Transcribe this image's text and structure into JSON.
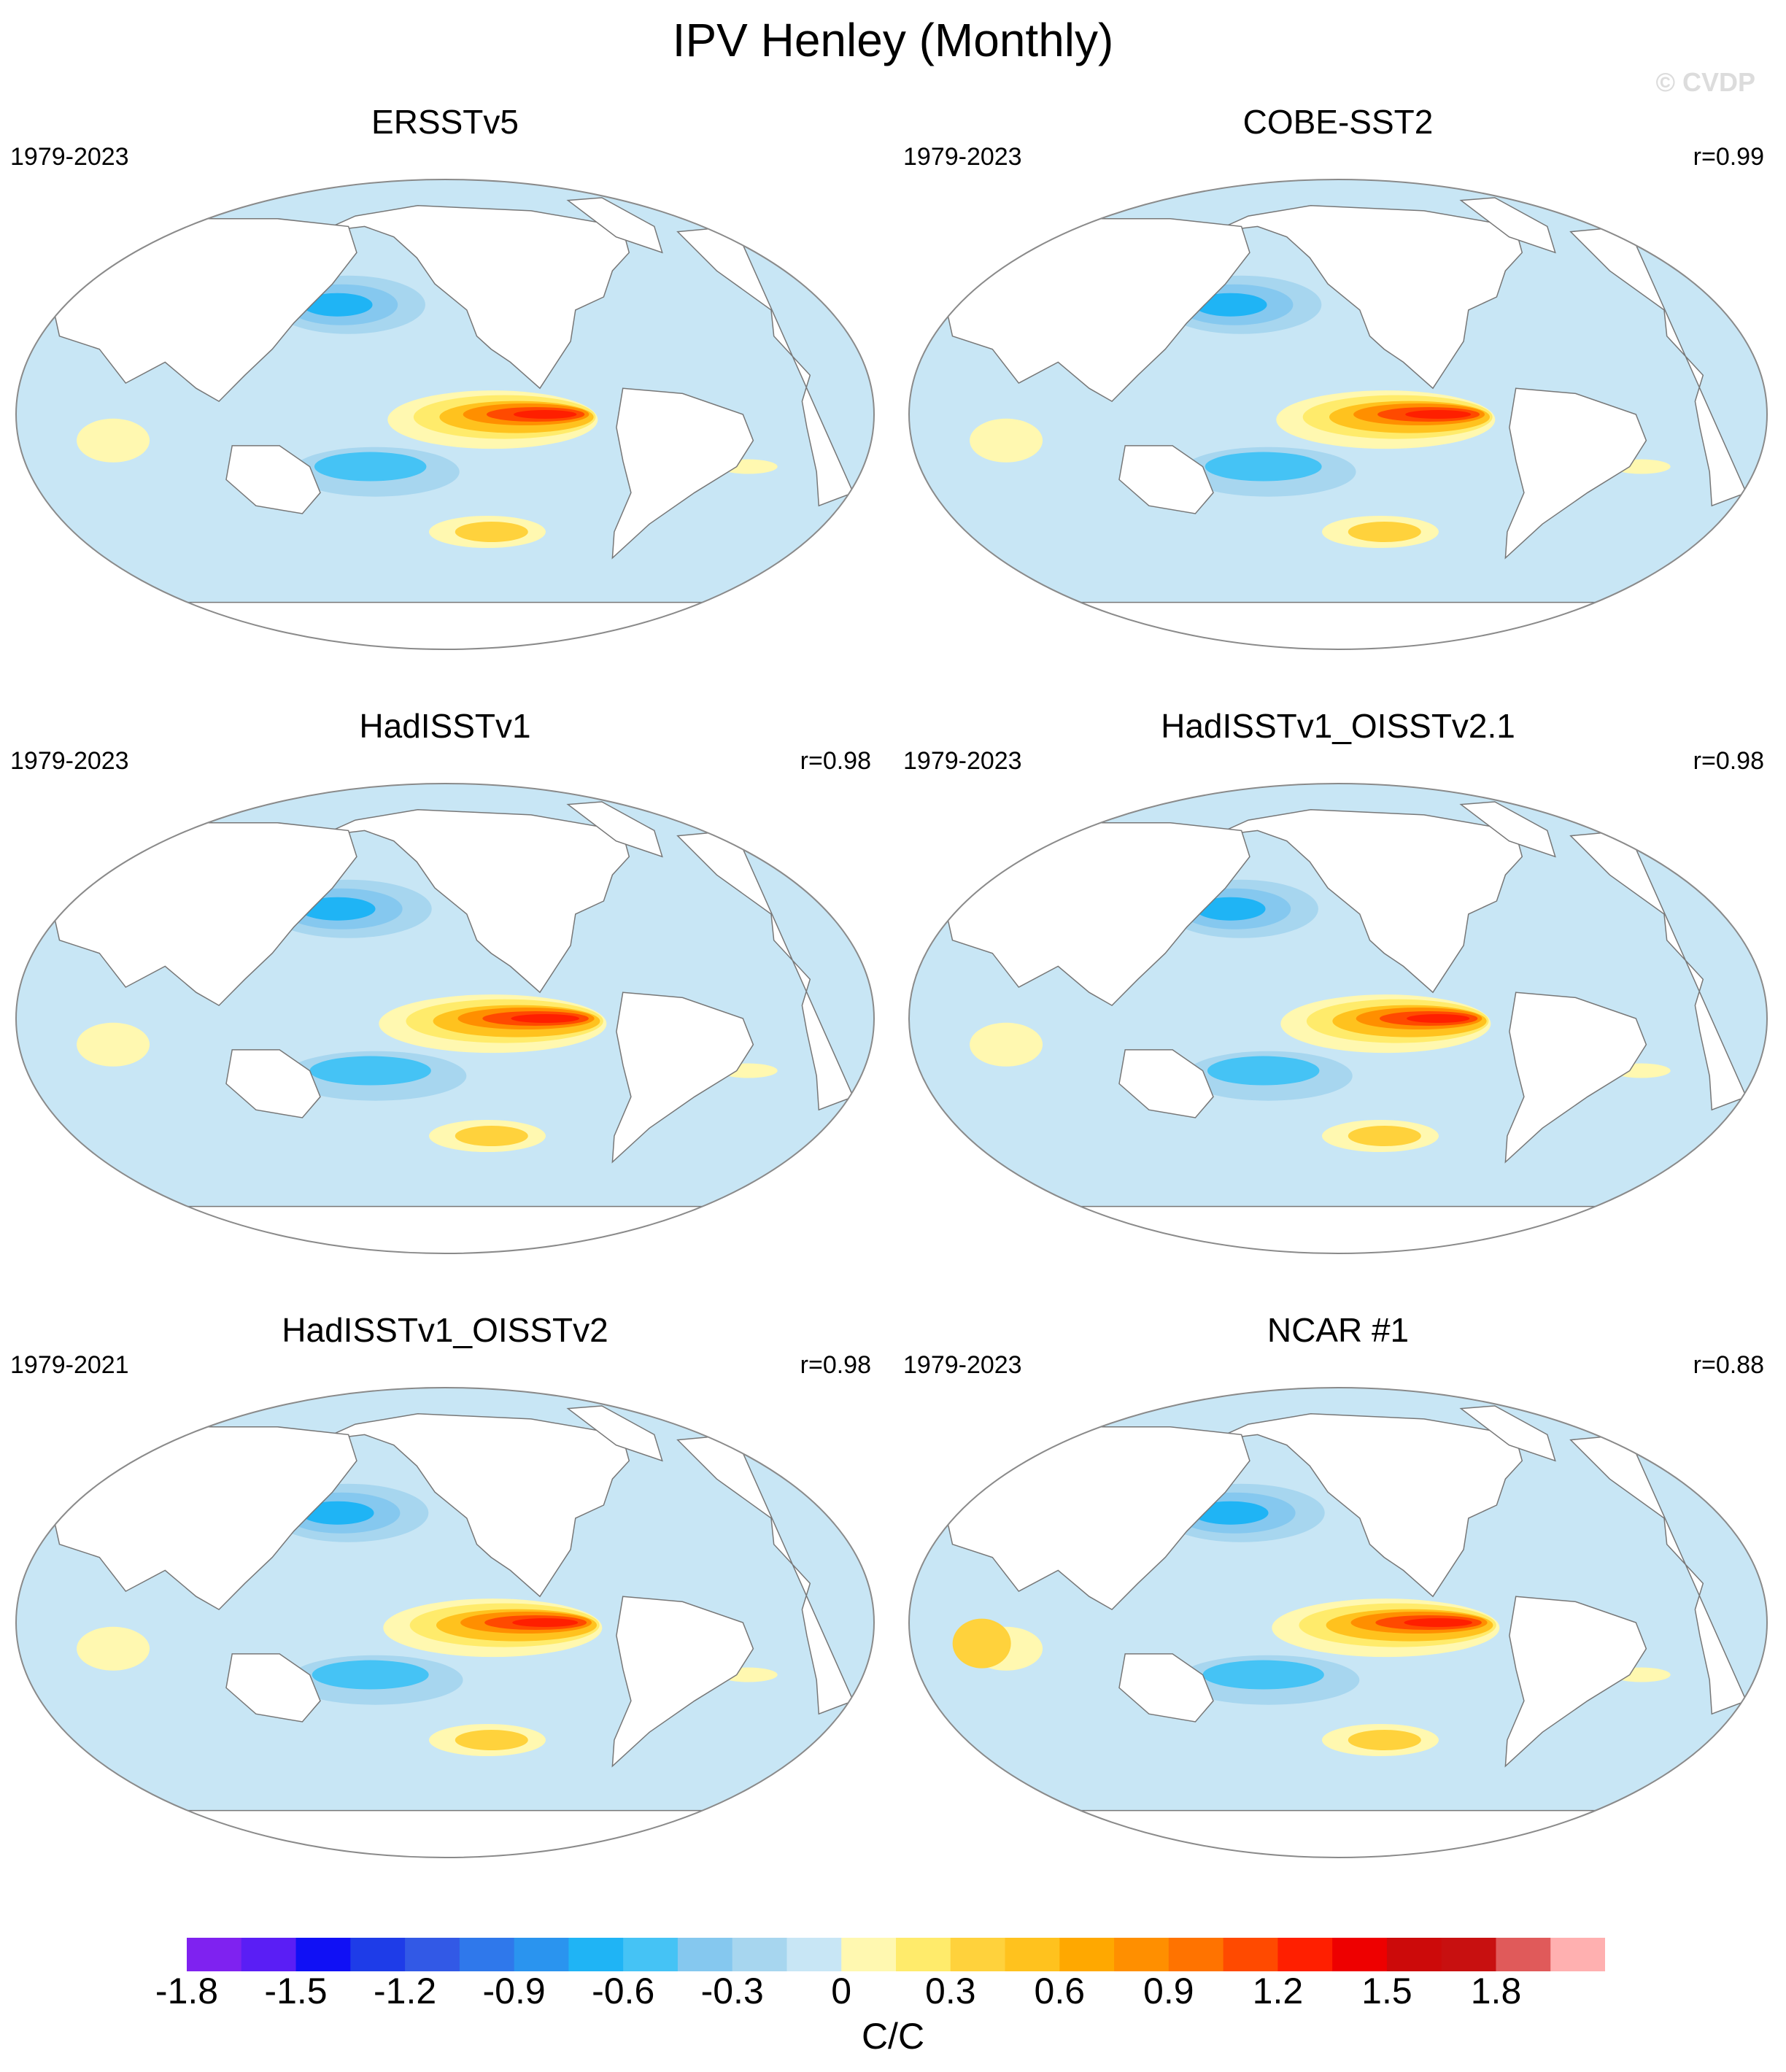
{
  "title": "IPV Henley (Monthly)",
  "watermark": "© CVDP",
  "colors": {
    "ocean_neutral": "#c8e6f5",
    "land": "#ffffff",
    "coast": "#777777",
    "border": "#8a8a8a"
  },
  "panels": [
    {
      "title": "ERSSTv5",
      "period": "1979-2023",
      "correlation": "",
      "variant": 0
    },
    {
      "title": "COBE-SST2",
      "period": "1979-2023",
      "correlation": "r=0.99",
      "variant": 1
    },
    {
      "title": "HadISSTv1",
      "period": "1979-2023",
      "correlation": "r=0.98",
      "variant": 2
    },
    {
      "title": "HadISSTv1_OISSTv2.1",
      "period": "1979-2023",
      "correlation": "r=0.98",
      "variant": 3
    },
    {
      "title": "HadISSTv1_OISSTv2",
      "period": "1979-2021",
      "correlation": "r=0.98",
      "variant": 4
    },
    {
      "title": "NCAR #1",
      "period": "1979-2023",
      "correlation": "r=0.88",
      "variant": 5
    }
  ],
  "colorbar": {
    "units": "C/C",
    "colors": [
      "#7f22f0",
      "#5a1ef5",
      "#1010f5",
      "#1e3ce8",
      "#3259e6",
      "#2f78eb",
      "#2a94ef",
      "#1fb4f5",
      "#45c3f5",
      "#85c8ef",
      "#a7d6ef",
      "#c8e6f5",
      "#fff8b0",
      "#ffeb6b",
      "#ffd23c",
      "#ffc21e",
      "#ffa800",
      "#ff8f00",
      "#ff7300",
      "#ff4a00",
      "#ff1f00",
      "#ee0000",
      "#cc0a0a",
      "#c81010",
      "#e05a5a",
      "#ffb0b0"
    ],
    "tick_labels": [
      "-1.8",
      "-1.5",
      "-1.2",
      "-0.9",
      "-0.6",
      "-0.3",
      "0",
      "0.3",
      "0.6",
      "0.9",
      "1.2",
      "1.5",
      "1.8"
    ],
    "tick_values": [
      -1.8,
      -1.5,
      -1.2,
      -0.9,
      -0.6,
      -0.3,
      0,
      0.3,
      0.6,
      0.9,
      1.2,
      1.5,
      1.8
    ]
  }
}
